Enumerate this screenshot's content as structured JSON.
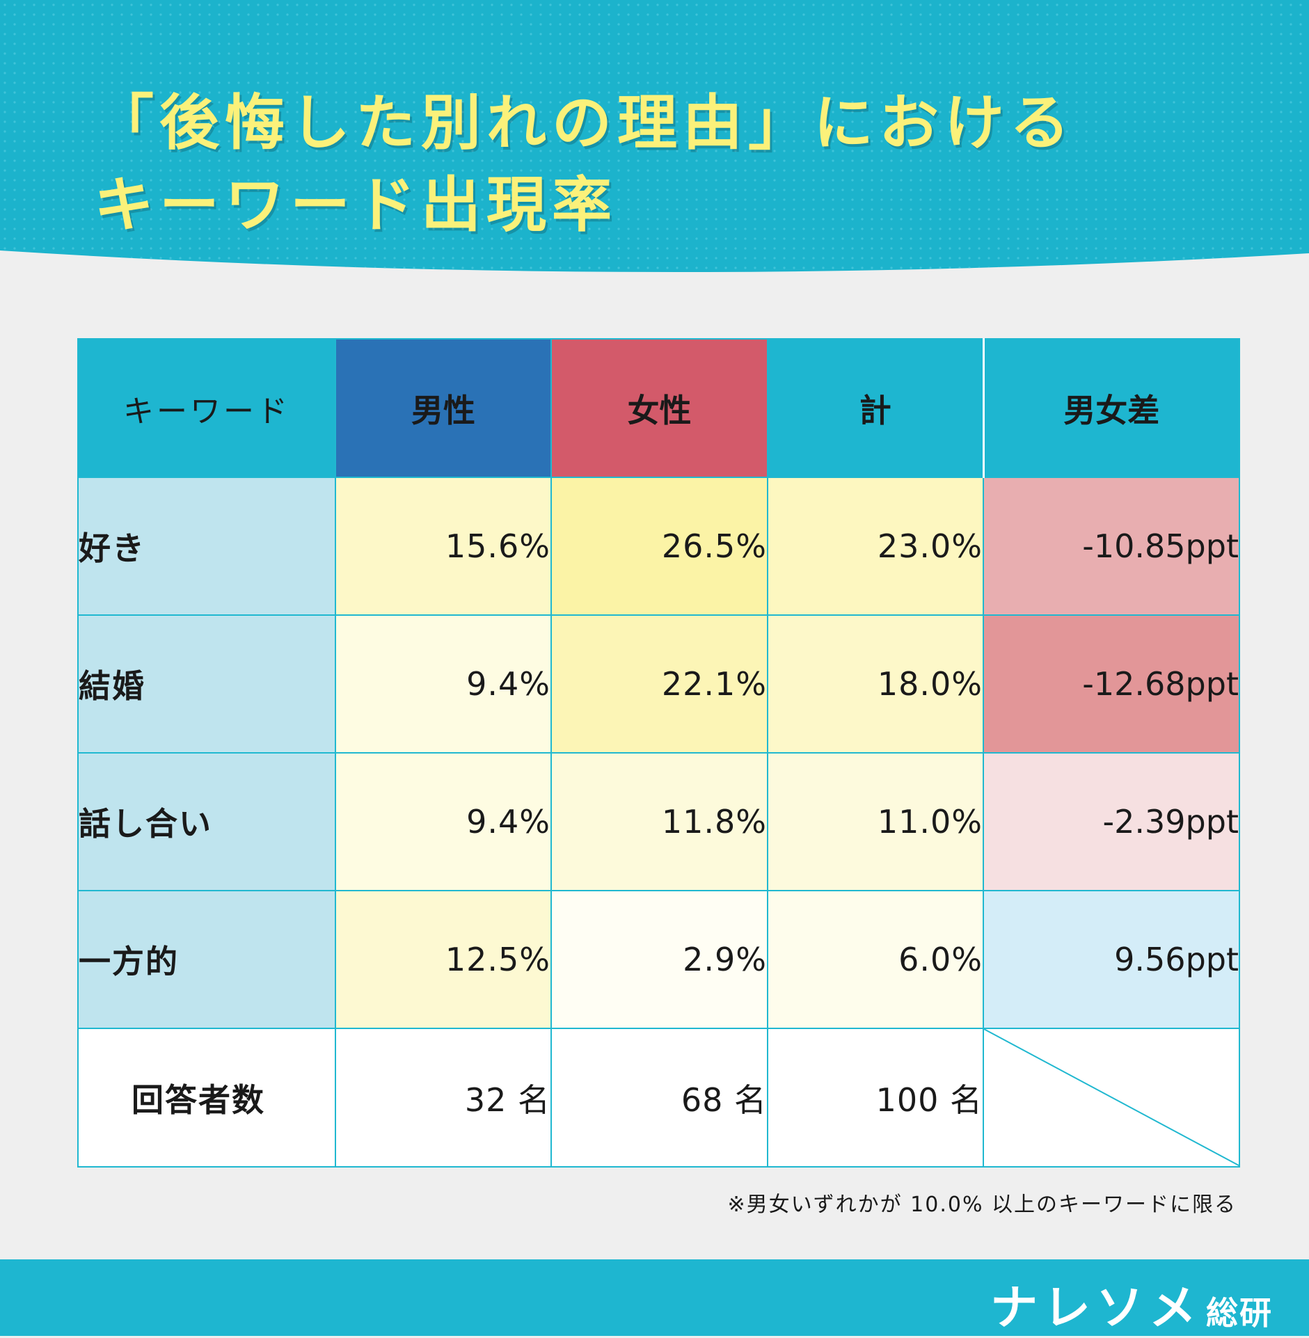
{
  "title": {
    "line1": "「後悔した別れの理由」における",
    "line2": "キーワード出現率"
  },
  "colors": {
    "teal": "#1eb6d0",
    "male": "#2a72b6",
    "female": "#d35a6a",
    "title_yellow": "#fbf17a"
  },
  "chart_data": {
    "type": "table",
    "headers": [
      "キーワード",
      "男性",
      "女性",
      "計",
      "男女差"
    ],
    "rows": [
      {
        "keyword": "好き",
        "male": "15.6%",
        "female": "26.5%",
        "total": "23.0%",
        "diff": "-10.85ppt",
        "male_bg": "#fdf8c8",
        "female_bg": "#fbf3a6",
        "total_bg": "#fdf7c0",
        "diff_bg": "#e8aeb0"
      },
      {
        "keyword": "結婚",
        "male": "9.4%",
        "female": "22.1%",
        "total": "18.0%",
        "diff": "-12.68ppt",
        "male_bg": "#fefce2",
        "female_bg": "#fcf5b6",
        "total_bg": "#fdf8c9",
        "diff_bg": "#e29698"
      },
      {
        "keyword": "話し合い",
        "male": "9.4%",
        "female": "11.8%",
        "total": "11.0%",
        "diff": "-2.39ppt",
        "male_bg": "#fefce2",
        "female_bg": "#fdfadb",
        "total_bg": "#fdfadd",
        "diff_bg": "#f6e0e1"
      },
      {
        "keyword": "一方的",
        "male": "12.5%",
        "female": "2.9%",
        "total": "6.0%",
        "diff": "9.56ppt",
        "male_bg": "#fdf9d2",
        "female_bg": "#fffef4",
        "total_bg": "#fefdec",
        "diff_bg": "#d4edf8"
      }
    ],
    "respondents": {
      "label": "回答者数",
      "male": "32 名",
      "female": "68 名",
      "total": "100 名"
    }
  },
  "footnote": "※男女いずれかが 10.0% 以上のキーワードに限る",
  "logo": {
    "main": "ナレソメ",
    "sub": "総研"
  }
}
